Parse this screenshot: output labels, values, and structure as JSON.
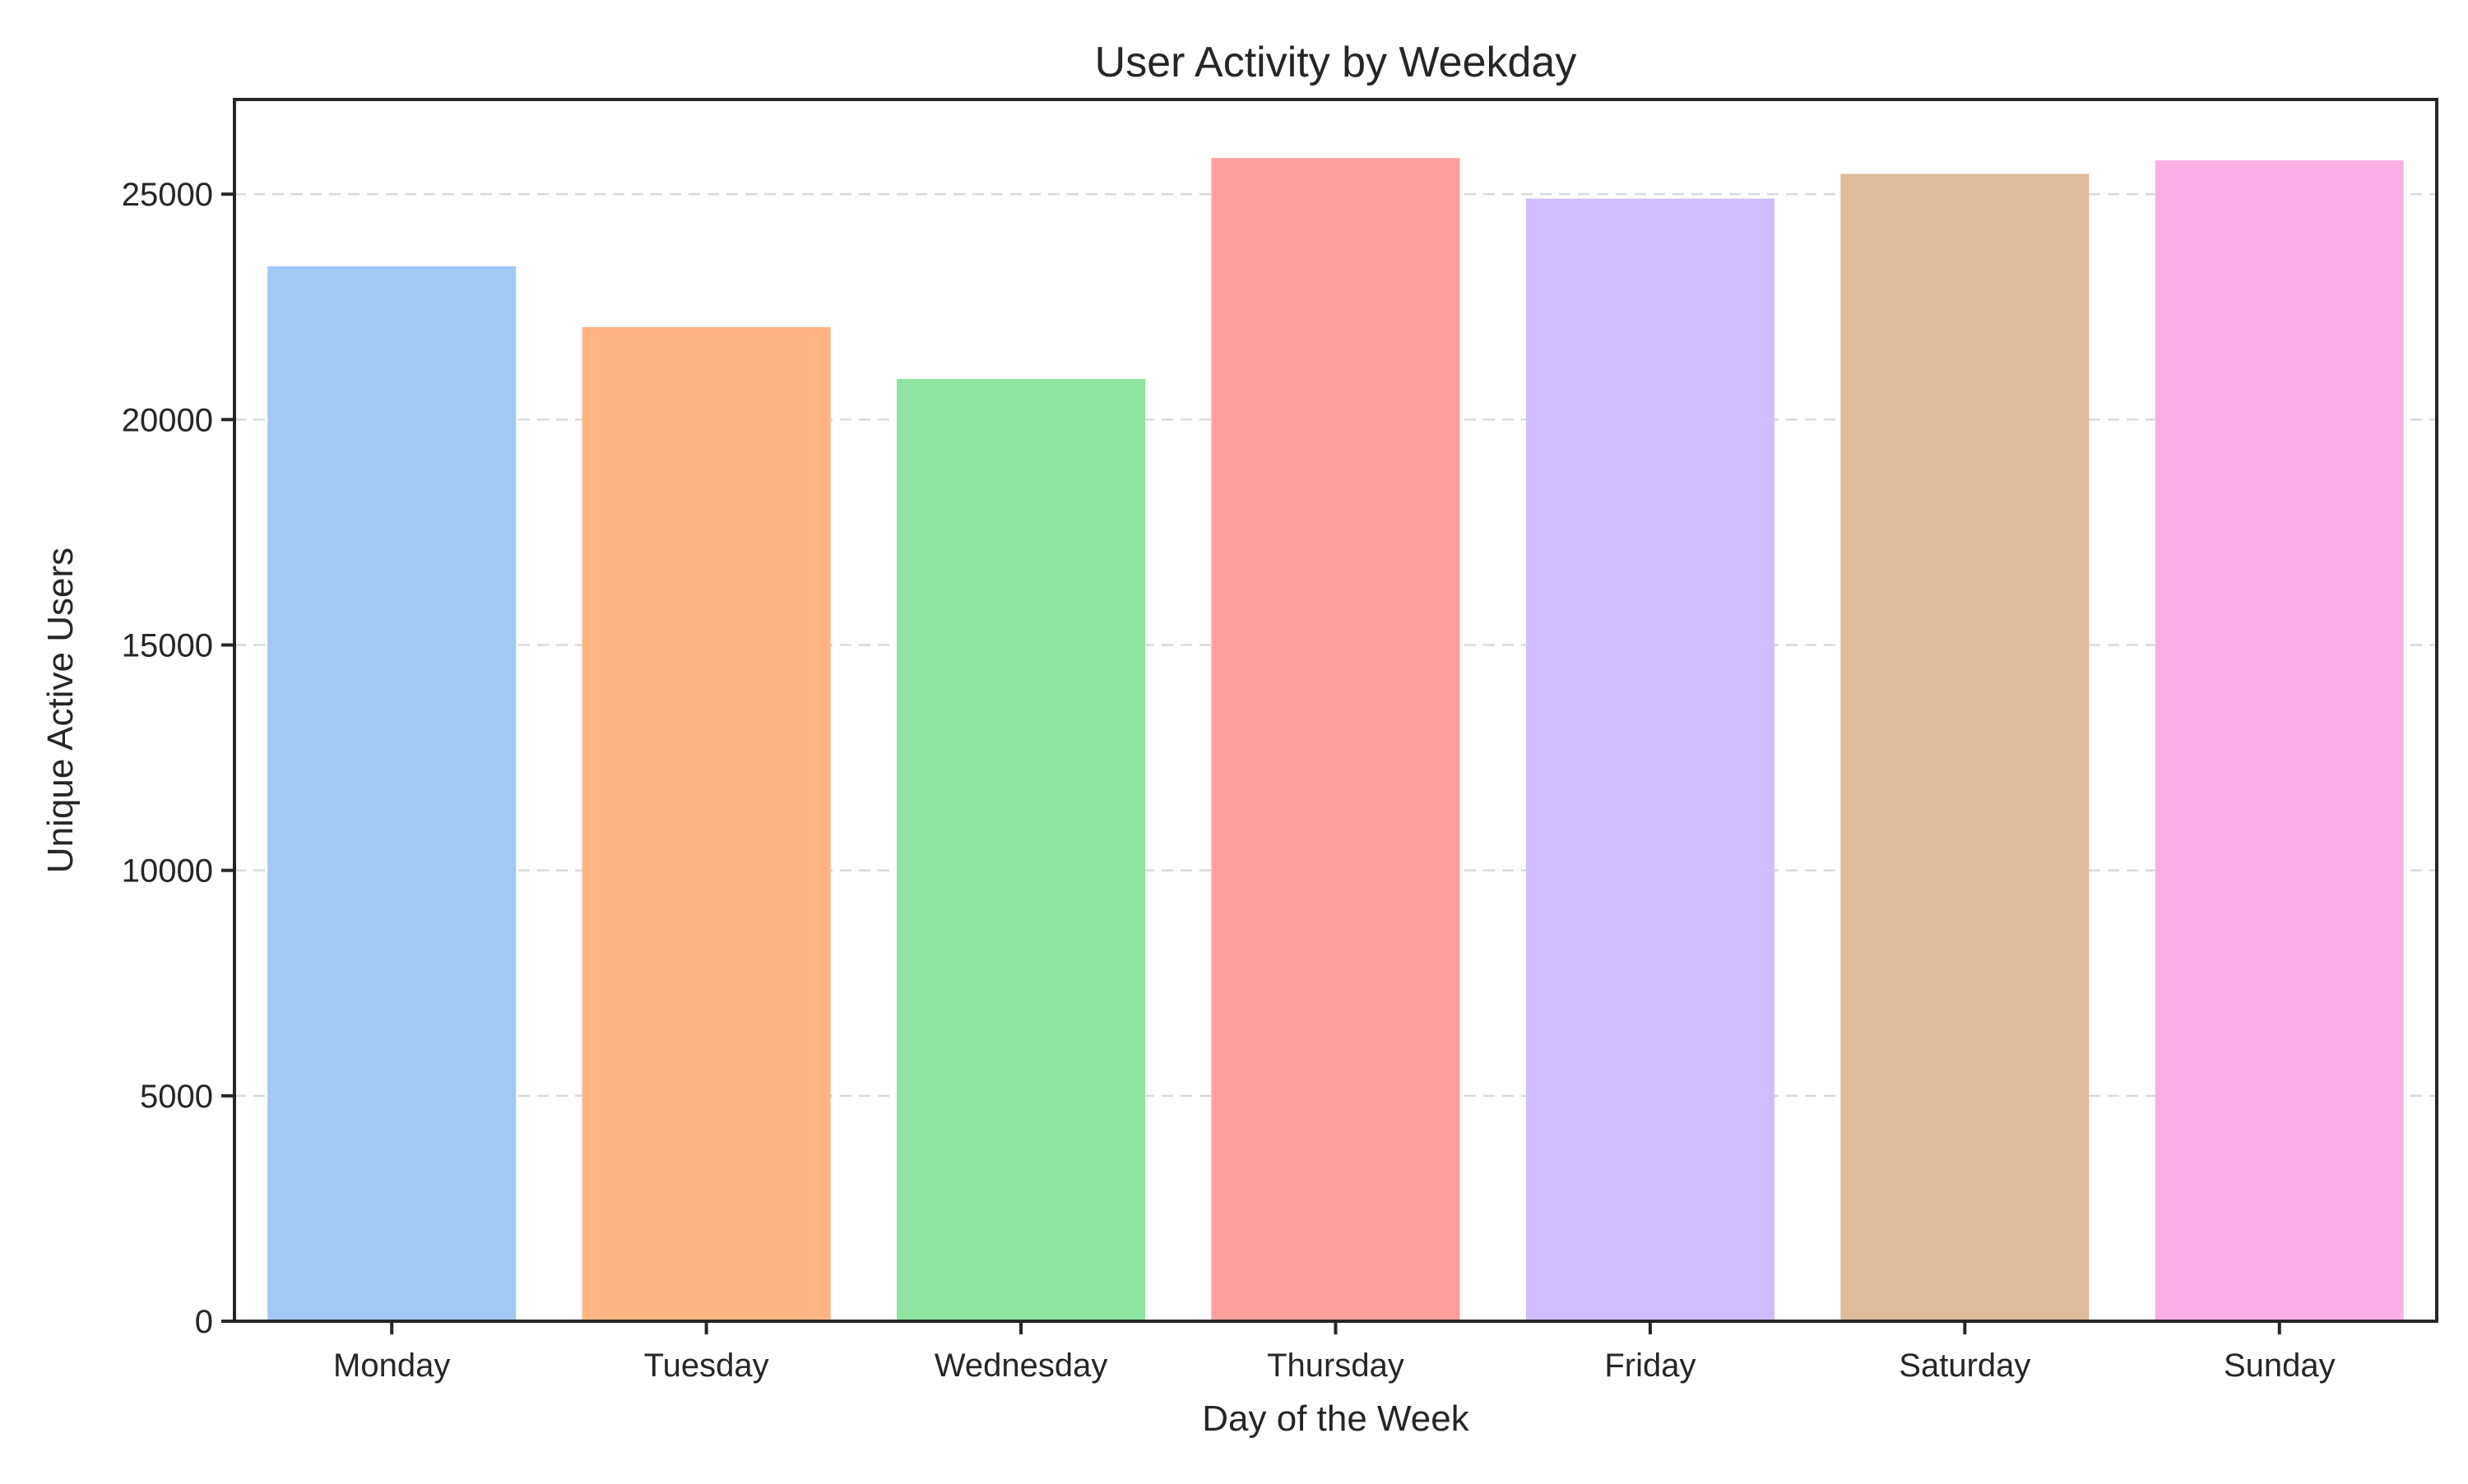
{
  "chart_data": {
    "type": "bar",
    "title": "User Activity by Weekday",
    "xlabel": "Day of the Week",
    "ylabel": "Unique Active Users",
    "categories": [
      "Monday",
      "Tuesday",
      "Wednesday",
      "Thursday",
      "Friday",
      "Saturday",
      "Sunday"
    ],
    "values": [
      23400,
      22050,
      20900,
      25800,
      24900,
      25450,
      25750
    ],
    "colors": [
      "#a1c9f4",
      "#ffb482",
      "#8de5a1",
      "#ff9f9b",
      "#d0bbff",
      "#debb9b",
      "#fab0e4"
    ],
    "ylim": [
      0,
      27100
    ],
    "yticks": [
      0,
      5000,
      10000,
      15000,
      20000,
      25000
    ],
    "grid": "y-dashed",
    "legend": "none"
  }
}
